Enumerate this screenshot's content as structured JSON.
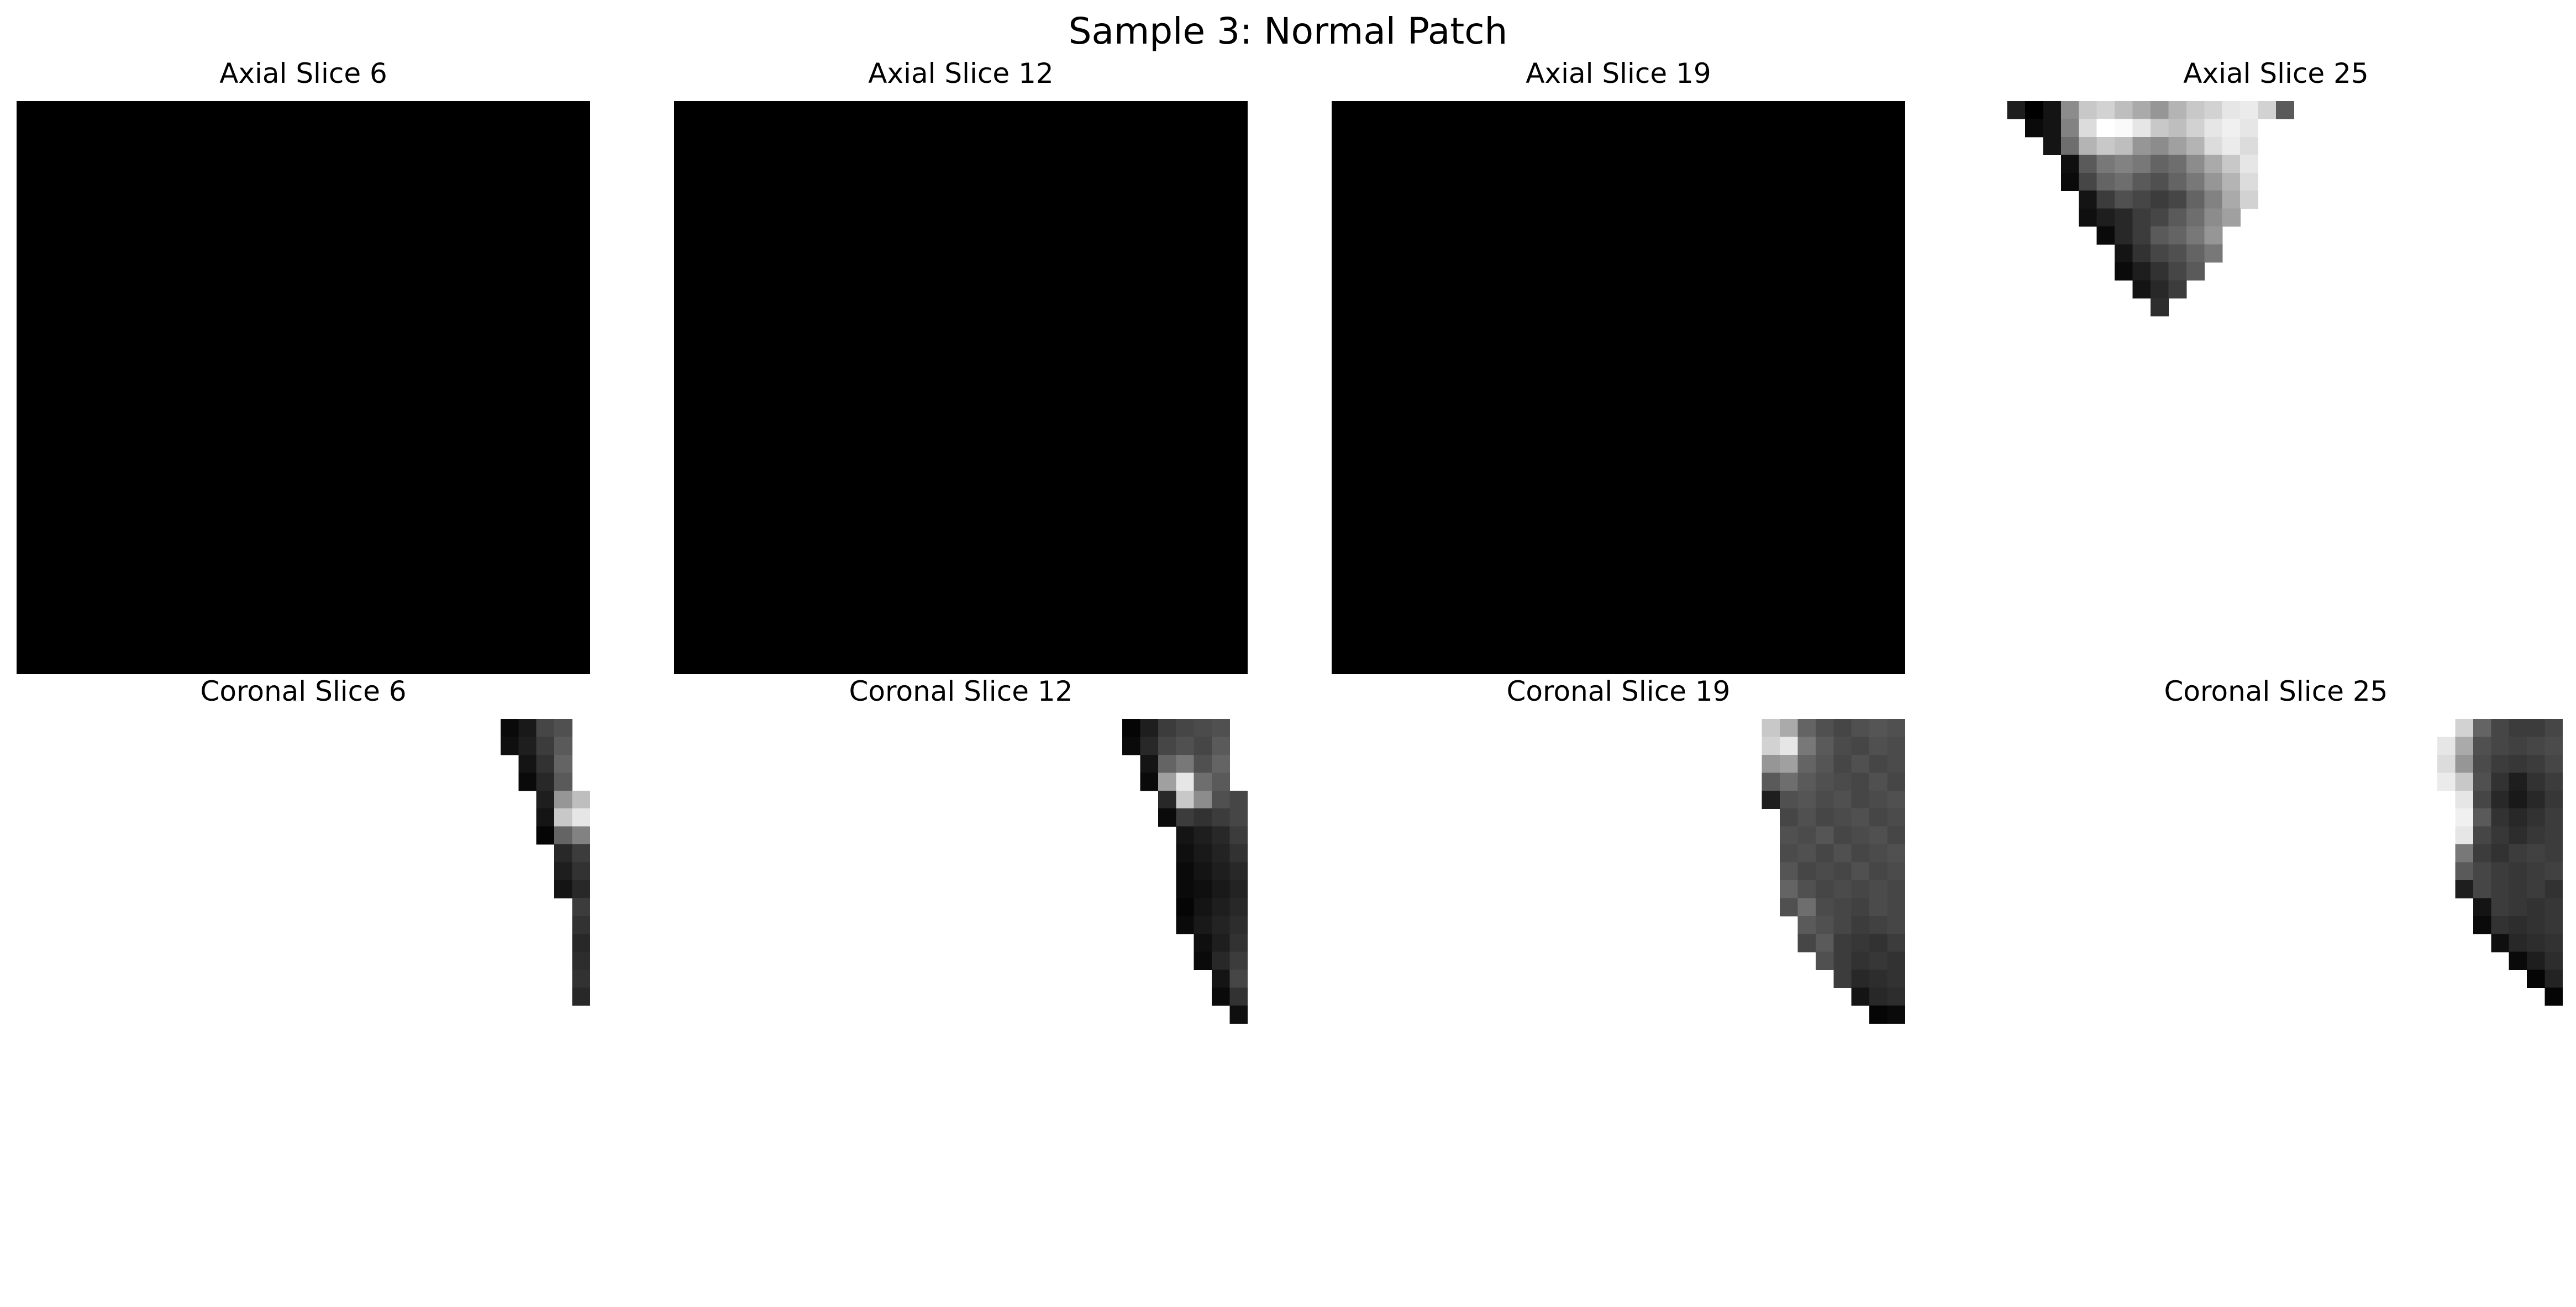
{
  "figure": {
    "title": "Sample 3: Normal Patch"
  },
  "panels": [
    {
      "title": "Axial Slice 6",
      "image": "axial-slice-6",
      "grid": 32,
      "background": "#000000",
      "cells": []
    },
    {
      "title": "Axial Slice 12",
      "image": "axial-slice-12",
      "grid": 32,
      "background": "#000000",
      "cells": []
    },
    {
      "title": "Axial Slice 19",
      "image": "axial-slice-19",
      "grid": 32,
      "background": "#000000",
      "cells": []
    },
    {
      "title": "Axial Slice 25",
      "image": "axial-slice-25",
      "grid": 32,
      "background": "none",
      "cells": [
        {
          "row": 0,
          "start": 1,
          "values": [
            30,
            0,
            20,
            140,
            200,
            210,
            190,
            170,
            150,
            180,
            200,
            210,
            230,
            235,
            210,
            90
          ]
        },
        {
          "row": 1,
          "start": 2,
          "values": [
            10,
            20,
            130,
            220,
            255,
            250,
            230,
            200,
            190,
            210,
            230,
            240,
            230
          ]
        },
        {
          "row": 2,
          "start": 3,
          "values": [
            20,
            110,
            180,
            200,
            190,
            150,
            140,
            160,
            180,
            220,
            235,
            220
          ]
        },
        {
          "row": 3,
          "start": 4,
          "values": [
            15,
            90,
            120,
            130,
            120,
            100,
            110,
            140,
            170,
            200,
            230
          ]
        },
        {
          "row": 4,
          "start": 4,
          "values": [
            10,
            70,
            100,
            110,
            90,
            80,
            100,
            120,
            150,
            180,
            220
          ]
        },
        {
          "row": 5,
          "start": 5,
          "values": [
            20,
            60,
            80,
            70,
            60,
            70,
            100,
            130,
            170,
            210
          ]
        },
        {
          "row": 6,
          "start": 5,
          "values": [
            15,
            30,
            40,
            60,
            70,
            90,
            110,
            140,
            160
          ]
        },
        {
          "row": 7,
          "start": 6,
          "values": [
            10,
            40,
            60,
            90,
            100,
            120,
            150
          ]
        },
        {
          "row": 8,
          "start": 7,
          "values": [
            20,
            50,
            70,
            80,
            100,
            120
          ]
        },
        {
          "row": 9,
          "start": 7,
          "values": [
            10,
            30,
            50,
            70,
            90
          ]
        },
        {
          "row": 10,
          "start": 8,
          "values": [
            20,
            40,
            60
          ]
        },
        {
          "row": 11,
          "start": 9,
          "values": [
            45
          ]
        }
      ]
    },
    {
      "title": "Coronal Slice 6",
      "image": "coronal-slice-6",
      "grid": 32,
      "background": "none",
      "cells": [
        {
          "row": 0,
          "start": 27,
          "values": [
            10,
            25,
            70,
            80
          ]
        },
        {
          "row": 1,
          "start": 27,
          "values": [
            15,
            30,
            60,
            90
          ]
        },
        {
          "row": 2,
          "start": 28,
          "values": [
            20,
            50,
            100
          ]
        },
        {
          "row": 3,
          "start": 28,
          "values": [
            10,
            40,
            90
          ]
        },
        {
          "row": 4,
          "start": 29,
          "values": [
            30,
            150,
            190
          ]
        },
        {
          "row": 5,
          "start": 29,
          "values": [
            20,
            200,
            230
          ]
        },
        {
          "row": 6,
          "start": 29,
          "values": [
            5,
            100,
            130
          ]
        },
        {
          "row": 7,
          "start": 30,
          "values": [
            40,
            60
          ]
        },
        {
          "row": 8,
          "start": 30,
          "values": [
            30,
            50
          ]
        },
        {
          "row": 9,
          "start": 30,
          "values": [
            20,
            40
          ]
        },
        {
          "row": 10,
          "start": 31,
          "values": [
            60
          ]
        },
        {
          "row": 11,
          "start": 31,
          "values": [
            50
          ]
        },
        {
          "row": 12,
          "start": 31,
          "values": [
            40
          ]
        },
        {
          "row": 13,
          "start": 31,
          "values": [
            45
          ]
        },
        {
          "row": 14,
          "start": 31,
          "values": [
            50
          ]
        },
        {
          "row": 15,
          "start": 31,
          "values": [
            40
          ]
        }
      ]
    },
    {
      "title": "Coronal Slice 12",
      "image": "coronal-slice-12",
      "grid": 32,
      "background": "none",
      "cells": [
        {
          "row": 0,
          "start": 25,
          "values": [
            5,
            30,
            60,
            70,
            75,
            80
          ]
        },
        {
          "row": 1,
          "start": 25,
          "values": [
            10,
            40,
            70,
            80,
            70,
            90
          ]
        },
        {
          "row": 2,
          "start": 26,
          "values": [
            20,
            100,
            120,
            80,
            100
          ]
        },
        {
          "row": 3,
          "start": 26,
          "values": [
            10,
            160,
            230,
            110,
            90
          ]
        },
        {
          "row": 4,
          "start": 27,
          "values": [
            40,
            200,
            140,
            80,
            70
          ]
        },
        {
          "row": 5,
          "start": 27,
          "values": [
            10,
            60,
            50,
            60,
            70
          ]
        },
        {
          "row": 6,
          "start": 28,
          "values": [
            20,
            30,
            40,
            60
          ]
        },
        {
          "row": 7,
          "start": 28,
          "values": [
            15,
            25,
            35,
            50
          ]
        },
        {
          "row": 8,
          "start": 28,
          "values": [
            10,
            20,
            30,
            40
          ]
        },
        {
          "row": 9,
          "start": 28,
          "values": [
            10,
            15,
            25,
            35
          ]
        },
        {
          "row": 10,
          "start": 28,
          "values": [
            5,
            20,
            30,
            40
          ]
        },
        {
          "row": 11,
          "start": 28,
          "values": [
            10,
            25,
            35,
            45
          ]
        },
        {
          "row": 12,
          "start": 29,
          "values": [
            15,
            30,
            50
          ]
        },
        {
          "row": 13,
          "start": 29,
          "values": [
            10,
            40,
            60
          ]
        },
        {
          "row": 14,
          "start": 30,
          "values": [
            20,
            70
          ]
        },
        {
          "row": 15,
          "start": 30,
          "values": [
            10,
            50
          ]
        },
        {
          "row": 16,
          "start": 31,
          "values": [
            15
          ]
        }
      ]
    },
    {
      "title": "Coronal Slice 19",
      "image": "coronal-slice-19",
      "grid": 32,
      "background": "none",
      "cells": [
        {
          "row": 0,
          "start": 24,
          "values": [
            200,
            170,
            100,
            80,
            70,
            80,
            85,
            80
          ]
        },
        {
          "row": 1,
          "start": 24,
          "values": [
            210,
            230,
            120,
            90,
            75,
            70,
            80,
            75
          ]
        },
        {
          "row": 2,
          "start": 24,
          "values": [
            150,
            160,
            100,
            85,
            70,
            80,
            70,
            75
          ]
        },
        {
          "row": 3,
          "start": 24,
          "values": [
            90,
            110,
            90,
            80,
            75,
            70,
            80,
            70
          ]
        },
        {
          "row": 4,
          "start": 24,
          "values": [
            30,
            80,
            85,
            75,
            80,
            70,
            75,
            80
          ]
        },
        {
          "row": 5,
          "start": 25,
          "values": [
            70,
            80,
            70,
            75,
            80,
            70,
            75
          ]
        },
        {
          "row": 6,
          "start": 25,
          "values": [
            80,
            75,
            85,
            70,
            75,
            80,
            70
          ]
        },
        {
          "row": 7,
          "start": 25,
          "values": [
            75,
            80,
            70,
            80,
            70,
            75,
            80
          ]
        },
        {
          "row": 8,
          "start": 25,
          "values": [
            85,
            70,
            75,
            70,
            80,
            70,
            75
          ]
        },
        {
          "row": 9,
          "start": 25,
          "values": [
            100,
            80,
            70,
            75,
            70,
            75,
            70
          ]
        },
        {
          "row": 10,
          "start": 25,
          "values": [
            80,
            110,
            75,
            70,
            65,
            75,
            70
          ]
        },
        {
          "row": 11,
          "start": 26,
          "values": [
            90,
            80,
            70,
            60,
            65,
            70
          ]
        },
        {
          "row": 12,
          "start": 26,
          "values": [
            70,
            90,
            60,
            55,
            50,
            60
          ]
        },
        {
          "row": 13,
          "start": 27,
          "values": [
            80,
            60,
            50,
            55,
            50
          ]
        },
        {
          "row": 14,
          "start": 28,
          "values": [
            60,
            40,
            45,
            50
          ]
        },
        {
          "row": 15,
          "start": 29,
          "values": [
            20,
            40,
            45
          ]
        },
        {
          "row": 16,
          "start": 30,
          "values": [
            5,
            10
          ]
        }
      ]
    },
    {
      "title": "Coronal Slice 25",
      "image": "coronal-slice-25",
      "grid": 32,
      "background": "none",
      "cells": [
        {
          "row": 0,
          "start": 26,
          "values": [
            210,
            100,
            70,
            60,
            60,
            70
          ]
        },
        {
          "row": 1,
          "start": 25,
          "values": [
            230,
            170,
            80,
            70,
            65,
            70,
            75
          ]
        },
        {
          "row": 2,
          "start": 25,
          "values": [
            220,
            150,
            75,
            60,
            55,
            60,
            70
          ]
        },
        {
          "row": 3,
          "start": 25,
          "values": [
            235,
            200,
            80,
            50,
            30,
            50,
            60
          ]
        },
        {
          "row": 4,
          "start": 26,
          "values": [
            230,
            70,
            40,
            25,
            40,
            55
          ]
        },
        {
          "row": 5,
          "start": 26,
          "values": [
            240,
            90,
            50,
            40,
            50,
            60
          ]
        },
        {
          "row": 6,
          "start": 26,
          "values": [
            230,
            70,
            55,
            45,
            55,
            60
          ]
        },
        {
          "row": 7,
          "start": 26,
          "values": [
            120,
            60,
            50,
            60,
            65,
            60
          ]
        },
        {
          "row": 8,
          "start": 26,
          "values": [
            90,
            70,
            60,
            55,
            60,
            65
          ]
        },
        {
          "row": 9,
          "start": 26,
          "values": [
            30,
            70,
            60,
            55,
            60,
            50
          ]
        },
        {
          "row": 10,
          "start": 27,
          "values": [
            20,
            60,
            55,
            50,
            55
          ]
        },
        {
          "row": 11,
          "start": 27,
          "values": [
            10,
            50,
            45,
            50,
            55
          ]
        },
        {
          "row": 12,
          "start": 28,
          "values": [
            15,
            40,
            45,
            50
          ]
        },
        {
          "row": 13,
          "start": 29,
          "values": [
            10,
            30,
            45
          ]
        },
        {
          "row": 14,
          "start": 30,
          "values": [
            5,
            35
          ]
        },
        {
          "row": 15,
          "start": 31,
          "values": [
            5
          ]
        }
      ]
    }
  ]
}
